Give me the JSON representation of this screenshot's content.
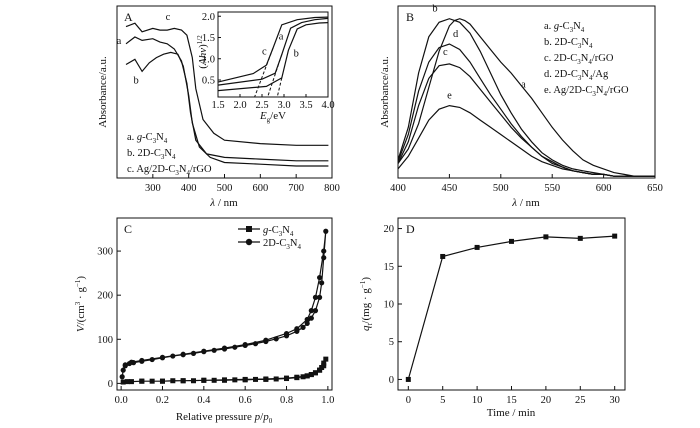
{
  "chart_data": [
    {
      "panel": "A",
      "type": "line",
      "xlabel": "λ / nm",
      "ylabel": "Absorbance/a.u.",
      "xlim": [
        200,
        800
      ],
      "xticks": [
        300,
        400,
        500,
        600,
        700,
        800
      ],
      "series": [
        {
          "name": "a. g-C3N4",
          "label": "a",
          "x": [
            225,
            250,
            270,
            300,
            320,
            340,
            360,
            380,
            395,
            405,
            420,
            450,
            500,
            600,
            700,
            790
          ],
          "y": [
            0.78,
            0.82,
            0.8,
            0.81,
            0.79,
            0.78,
            0.75,
            0.68,
            0.55,
            0.38,
            0.22,
            0.14,
            0.12,
            0.11,
            0.1,
            0.1
          ]
        },
        {
          "name": "b. 2D-C3N4",
          "label": "b",
          "x": [
            225,
            250,
            270,
            290,
            310,
            330,
            350,
            370,
            385,
            400,
            410,
            430,
            460,
            500,
            600,
            700,
            790
          ],
          "y": [
            0.66,
            0.69,
            0.62,
            0.67,
            0.7,
            0.72,
            0.73,
            0.72,
            0.65,
            0.48,
            0.32,
            0.18,
            0.12,
            0.09,
            0.08,
            0.07,
            0.07
          ]
        },
        {
          "name": "c. Ag/2D-C3N4/rGO",
          "label": "c",
          "x": [
            225,
            250,
            270,
            300,
            320,
            340,
            360,
            380,
            395,
            410,
            420,
            440,
            470,
            500,
            600,
            700,
            790
          ],
          "y": [
            0.88,
            0.9,
            0.85,
            0.87,
            0.86,
            0.86,
            0.87,
            0.86,
            0.83,
            0.7,
            0.52,
            0.34,
            0.26,
            0.22,
            0.2,
            0.19,
            0.19
          ]
        }
      ],
      "legend": [
        "a. g-C3N4",
        "b. 2D-C3N4",
        "c. Ag/2D-C3N4/rGO"
      ],
      "legend_position": "bottom-left",
      "inset": {
        "xlabel": "Eg/eV",
        "ylabel": "(Ahν)^1/2",
        "xlim": [
          1.5,
          4.0
        ],
        "ylim": [
          0.1,
          2.1
        ],
        "xticks": [
          1.5,
          2.0,
          2.5,
          3.0,
          3.5,
          4.0
        ],
        "yticks": [
          0.5,
          1.0,
          1.5,
          2.0
        ],
        "series": [
          {
            "label": "a",
            "x": [
              1.5,
              2.5,
              2.8,
              2.95,
              3.15,
              3.4,
              3.7,
              4.0
            ],
            "y": [
              0.38,
              0.52,
              0.66,
              1.1,
              1.72,
              1.85,
              1.92,
              1.95
            ]
          },
          {
            "label": "b",
            "x": [
              1.5,
              2.6,
              2.95,
              3.1,
              3.3,
              3.5,
              3.8,
              4.0
            ],
            "y": [
              0.25,
              0.35,
              0.55,
              1.2,
              1.7,
              1.8,
              1.84,
              1.85
            ]
          },
          {
            "label": "c",
            "x": [
              1.5,
              2.3,
              2.6,
              2.75,
              2.95,
              3.3,
              3.7,
              4.0
            ],
            "y": [
              0.45,
              0.65,
              0.85,
              1.25,
              1.8,
              1.92,
              1.97,
              1.98
            ]
          }
        ]
      }
    },
    {
      "panel": "B",
      "type": "line",
      "xlabel": "λ / nm",
      "ylabel": "Absorbance/a.u.",
      "xlim": [
        400,
        650
      ],
      "xticks": [
        400,
        450,
        500,
        550,
        600,
        650
      ],
      "series": [
        {
          "name": "a. g-C3N4",
          "label": "a",
          "x": [
            400,
            410,
            420,
            430,
            440,
            450,
            455,
            460,
            465,
            470,
            480,
            490,
            500,
            510,
            520,
            530,
            540,
            550,
            560,
            570,
            580,
            590,
            600,
            610,
            620,
            630,
            640,
            650
          ],
          "y": [
            0.08,
            0.16,
            0.3,
            0.5,
            0.7,
            0.84,
            0.87,
            0.88,
            0.87,
            0.85,
            0.78,
            0.71,
            0.64,
            0.58,
            0.51,
            0.44,
            0.36,
            0.28,
            0.21,
            0.15,
            0.1,
            0.07,
            0.05,
            0.03,
            0.02,
            0.01,
            0.01,
            0.01
          ]
        },
        {
          "name": "b. 2D-C3N4",
          "label": "b",
          "x": [
            400,
            410,
            420,
            430,
            440,
            450,
            460,
            470,
            480,
            490,
            500,
            510,
            520,
            530,
            540,
            550,
            560,
            570,
            580,
            590,
            600,
            610,
            620,
            630,
            640,
            650
          ],
          "y": [
            0.1,
            0.28,
            0.58,
            0.78,
            0.86,
            0.88,
            0.86,
            0.8,
            0.7,
            0.58,
            0.46,
            0.36,
            0.27,
            0.2,
            0.14,
            0.1,
            0.07,
            0.05,
            0.04,
            0.03,
            0.02,
            0.01,
            0.01,
            0.01,
            0.01,
            0.01
          ]
        },
        {
          "name": "c. 2D-C3N4/rGO",
          "label": "c",
          "x": [
            400,
            410,
            420,
            430,
            440,
            450,
            460,
            470,
            480,
            490,
            500,
            510,
            520,
            530,
            540,
            550,
            560,
            570,
            580,
            590,
            600,
            610,
            620,
            630,
            640,
            650
          ],
          "y": [
            0.08,
            0.2,
            0.4,
            0.55,
            0.62,
            0.63,
            0.61,
            0.56,
            0.49,
            0.42,
            0.35,
            0.28,
            0.22,
            0.17,
            0.12,
            0.09,
            0.06,
            0.04,
            0.03,
            0.02,
            0.02,
            0.01,
            0.01,
            0.01,
            0.01,
            0.01
          ]
        },
        {
          "name": "d. 2D-C3N4/Ag",
          "label": "d",
          "x": [
            400,
            410,
            420,
            430,
            440,
            450,
            460,
            470,
            480,
            490,
            500,
            510,
            520,
            530,
            540,
            550,
            560,
            570,
            580,
            590,
            600,
            610,
            620,
            630,
            640,
            650
          ],
          "y": [
            0.09,
            0.24,
            0.48,
            0.64,
            0.72,
            0.74,
            0.71,
            0.64,
            0.55,
            0.46,
            0.38,
            0.3,
            0.23,
            0.17,
            0.12,
            0.08,
            0.06,
            0.04,
            0.03,
            0.02,
            0.02,
            0.01,
            0.01,
            0.01,
            0.01,
            0.01
          ]
        },
        {
          "name": "e. Ag/2D-C3N4/rGO",
          "label": "e",
          "x": [
            400,
            410,
            420,
            430,
            440,
            450,
            460,
            470,
            480,
            490,
            500,
            510,
            520,
            530,
            540,
            550,
            560,
            570,
            580,
            590,
            600,
            610,
            620,
            630,
            640,
            650
          ],
          "y": [
            0.05,
            0.12,
            0.22,
            0.32,
            0.38,
            0.4,
            0.39,
            0.36,
            0.32,
            0.28,
            0.24,
            0.2,
            0.16,
            0.12,
            0.09,
            0.07,
            0.05,
            0.04,
            0.03,
            0.02,
            0.02,
            0.01,
            0.01,
            0.01,
            0.01,
            0.01
          ]
        }
      ],
      "legend": [
        "a. g-C3N4",
        "b. 2D-C3N4",
        "c. 2D-C3N4/rGO",
        "d. 2D-C3N4/Ag",
        "e. Ag/2D-C3N4/rGO"
      ],
      "legend_position": "top-right"
    },
    {
      "panel": "C",
      "type": "line",
      "xlabel": "Relative pressure p/p0",
      "ylabel": "V/(cm3 · g-1)",
      "xlim": [
        -0.02,
        1.02
      ],
      "ylim": [
        -15,
        375
      ],
      "xticks": [
        0.0,
        0.2,
        0.4,
        0.6,
        0.8,
        1.0
      ],
      "yticks": [
        0,
        100,
        200,
        300
      ],
      "series": [
        {
          "name": "g-C3N4",
          "marker": "square",
          "x": [
            0.01,
            0.03,
            0.05,
            0.1,
            0.15,
            0.2,
            0.25,
            0.3,
            0.35,
            0.4,
            0.45,
            0.5,
            0.55,
            0.6,
            0.65,
            0.7,
            0.75,
            0.8,
            0.85,
            0.88,
            0.9,
            0.92,
            0.94,
            0.96,
            0.97,
            0.98,
            0.99,
            0.98,
            0.96,
            0.94,
            0.92,
            0.9,
            0.85,
            0.8,
            0.7,
            0.6,
            0.5,
            0.4,
            0.3,
            0.2,
            0.1
          ],
          "y": [
            3,
            4,
            4,
            5,
            5,
            5,
            6,
            6,
            6,
            7,
            7,
            7,
            8,
            8,
            9,
            9,
            10,
            11,
            13,
            15,
            17,
            20,
            24,
            30,
            36,
            46,
            55,
            40,
            30,
            24,
            20,
            17,
            14,
            12,
            10,
            9,
            8,
            7,
            6,
            5,
            5
          ]
        },
        {
          "name": "2D-C3N4",
          "marker": "circle",
          "x": [
            0.005,
            0.01,
            0.02,
            0.04,
            0.06,
            0.1,
            0.15,
            0.2,
            0.25,
            0.3,
            0.35,
            0.4,
            0.45,
            0.5,
            0.55,
            0.6,
            0.65,
            0.7,
            0.75,
            0.8,
            0.85,
            0.88,
            0.9,
            0.92,
            0.94,
            0.96,
            0.97,
            0.98,
            0.99,
            0.98,
            0.96,
            0.94,
            0.92,
            0.9,
            0.85,
            0.8,
            0.7,
            0.6,
            0.5,
            0.4,
            0.3,
            0.2,
            0.1,
            0.05,
            0.02
          ],
          "y": [
            15,
            30,
            40,
            45,
            47,
            50,
            54,
            58,
            62,
            65,
            68,
            72,
            75,
            78,
            82,
            86,
            90,
            95,
            101,
            108,
            118,
            127,
            136,
            148,
            165,
            195,
            228,
            285,
            345,
            300,
            240,
            195,
            165,
            145,
            124,
            113,
            98,
            88,
            80,
            73,
            66,
            59,
            52,
            48,
            42
          ]
        }
      ],
      "legend": [
        "g-C3N4",
        "2D-C3N4"
      ],
      "legend_position": "top-right"
    },
    {
      "panel": "D",
      "type": "line",
      "xlabel": "Time / min",
      "ylabel": "qt/(mg · g-1)",
      "xlim": [
        -1.5,
        31.5
      ],
      "ylim": [
        -1.4,
        21.4
      ],
      "xticks": [
        0,
        5,
        10,
        15,
        20,
        25,
        30
      ],
      "yticks": [
        0,
        5,
        10,
        15,
        20
      ],
      "x": [
        0,
        5,
        10,
        15,
        20,
        25,
        30
      ],
      "y": [
        0,
        16.3,
        17.5,
        18.3,
        18.9,
        18.7,
        19.0
      ],
      "marker": "square"
    }
  ]
}
